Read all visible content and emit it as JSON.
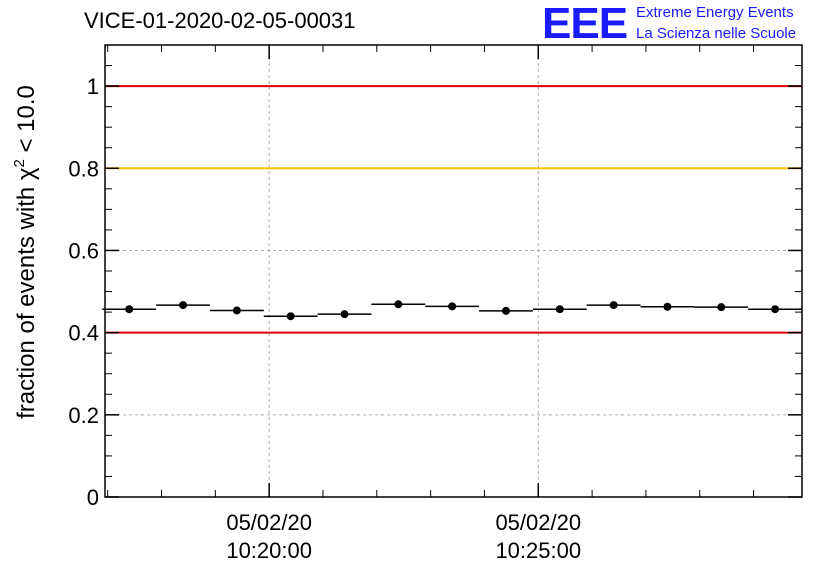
{
  "page": {
    "title": "VICE-01-2020-02-05-00031"
  },
  "logo": {
    "mark": "EEE",
    "line1": "Extreme Energy Events",
    "line2": "La Scienza nelle Scuole"
  },
  "chart_data": {
    "type": "scatter",
    "ylabel_prefix": "fraction of events with χ",
    "ylabel_sup": "2",
    "ylabel_suffix": " < 10.0",
    "xlabel": "",
    "ylim": [
      0,
      1.1
    ],
    "yticks": [
      0,
      0.2,
      0.4,
      0.6,
      0.8,
      1
    ],
    "ytick_labels": [
      "0",
      "0.2",
      "0.4",
      "0.6",
      "0.8",
      "1"
    ],
    "xlim_minutes": [
      -3.05,
      9.9
    ],
    "xticks": [
      {
        "minute": 0,
        "date": "05/02/20",
        "time": "10:20:00"
      },
      {
        "minute": 5,
        "date": "05/02/20",
        "time": "10:25:00"
      }
    ],
    "xgrid_minutes": [
      0,
      5
    ],
    "ygrid": [
      0.2,
      0.6
    ],
    "ref_lines": [
      {
        "y": 1.0,
        "color": "#e00000"
      },
      {
        "y": 0.8,
        "color": "#ffc000"
      },
      {
        "y": 0.4,
        "color": "#e00000"
      }
    ],
    "bin_width_minutes": 1,
    "series": [
      {
        "x_minutes": [
          -2.6,
          -1.6,
          -0.6,
          0.4,
          1.4,
          2.4,
          3.4,
          4.4,
          5.4,
          6.4,
          7.4,
          8.4,
          9.4
        ],
        "values": [
          0.457,
          0.467,
          0.454,
          0.44,
          0.445,
          0.469,
          0.464,
          0.453,
          0.457,
          0.467,
          0.463,
          0.462,
          0.457
        ]
      }
    ],
    "grid": true
  }
}
